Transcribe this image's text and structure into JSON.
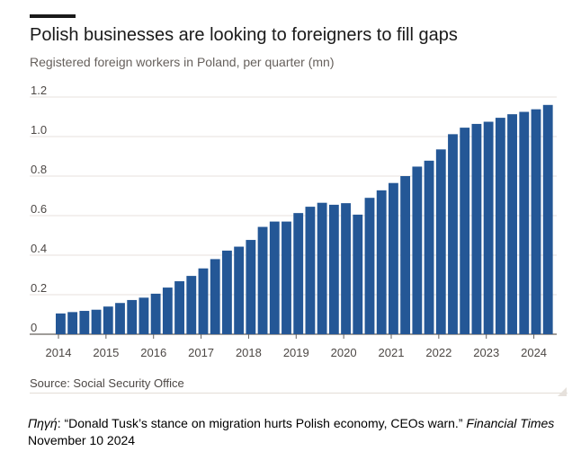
{
  "chart_data": {
    "type": "bar",
    "title": "Polish businesses are looking to foreigners to fill gaps",
    "subtitle": "Registered foreign workers in Poland, per quarter (mn)",
    "source": "Source: Social Security Office",
    "bar_color": "#245796",
    "ylim": [
      0,
      1.2
    ],
    "y_ticks": [
      {
        "value": 0,
        "label": "0"
      },
      {
        "value": 0.2,
        "label": "0.2"
      },
      {
        "value": 0.4,
        "label": "0.4"
      },
      {
        "value": 0.6,
        "label": "0.6"
      },
      {
        "value": 0.8,
        "label": "0.8"
      },
      {
        "value": 1.0,
        "label": "1.0"
      },
      {
        "value": 1.2,
        "label": "1.2"
      }
    ],
    "x_tick_labels": [
      "2014",
      "2015",
      "2016",
      "2017",
      "2018",
      "2019",
      "2020",
      "2021",
      "2022",
      "2023",
      "2024"
    ],
    "grid": true,
    "values": [
      0.105,
      0.112,
      0.118,
      0.124,
      0.14,
      0.158,
      0.173,
      0.185,
      0.205,
      0.236,
      0.268,
      0.295,
      0.333,
      0.38,
      0.423,
      0.443,
      0.477,
      0.543,
      0.57,
      0.57,
      0.613,
      0.645,
      0.665,
      0.655,
      0.663,
      0.605,
      0.69,
      0.728,
      0.765,
      0.8,
      0.848,
      0.878,
      0.935,
      1.012,
      1.045,
      1.064,
      1.075,
      1.095,
      1.113,
      1.125,
      1.138,
      1.16
    ]
  },
  "citation": {
    "label": "Πηγή",
    "separator": ": ",
    "article": "“Donald Tusk’s stance on migration hurts Polish economy, CEOs warn.” ",
    "publication": "Financial Times",
    "date": "November 10 2024"
  }
}
